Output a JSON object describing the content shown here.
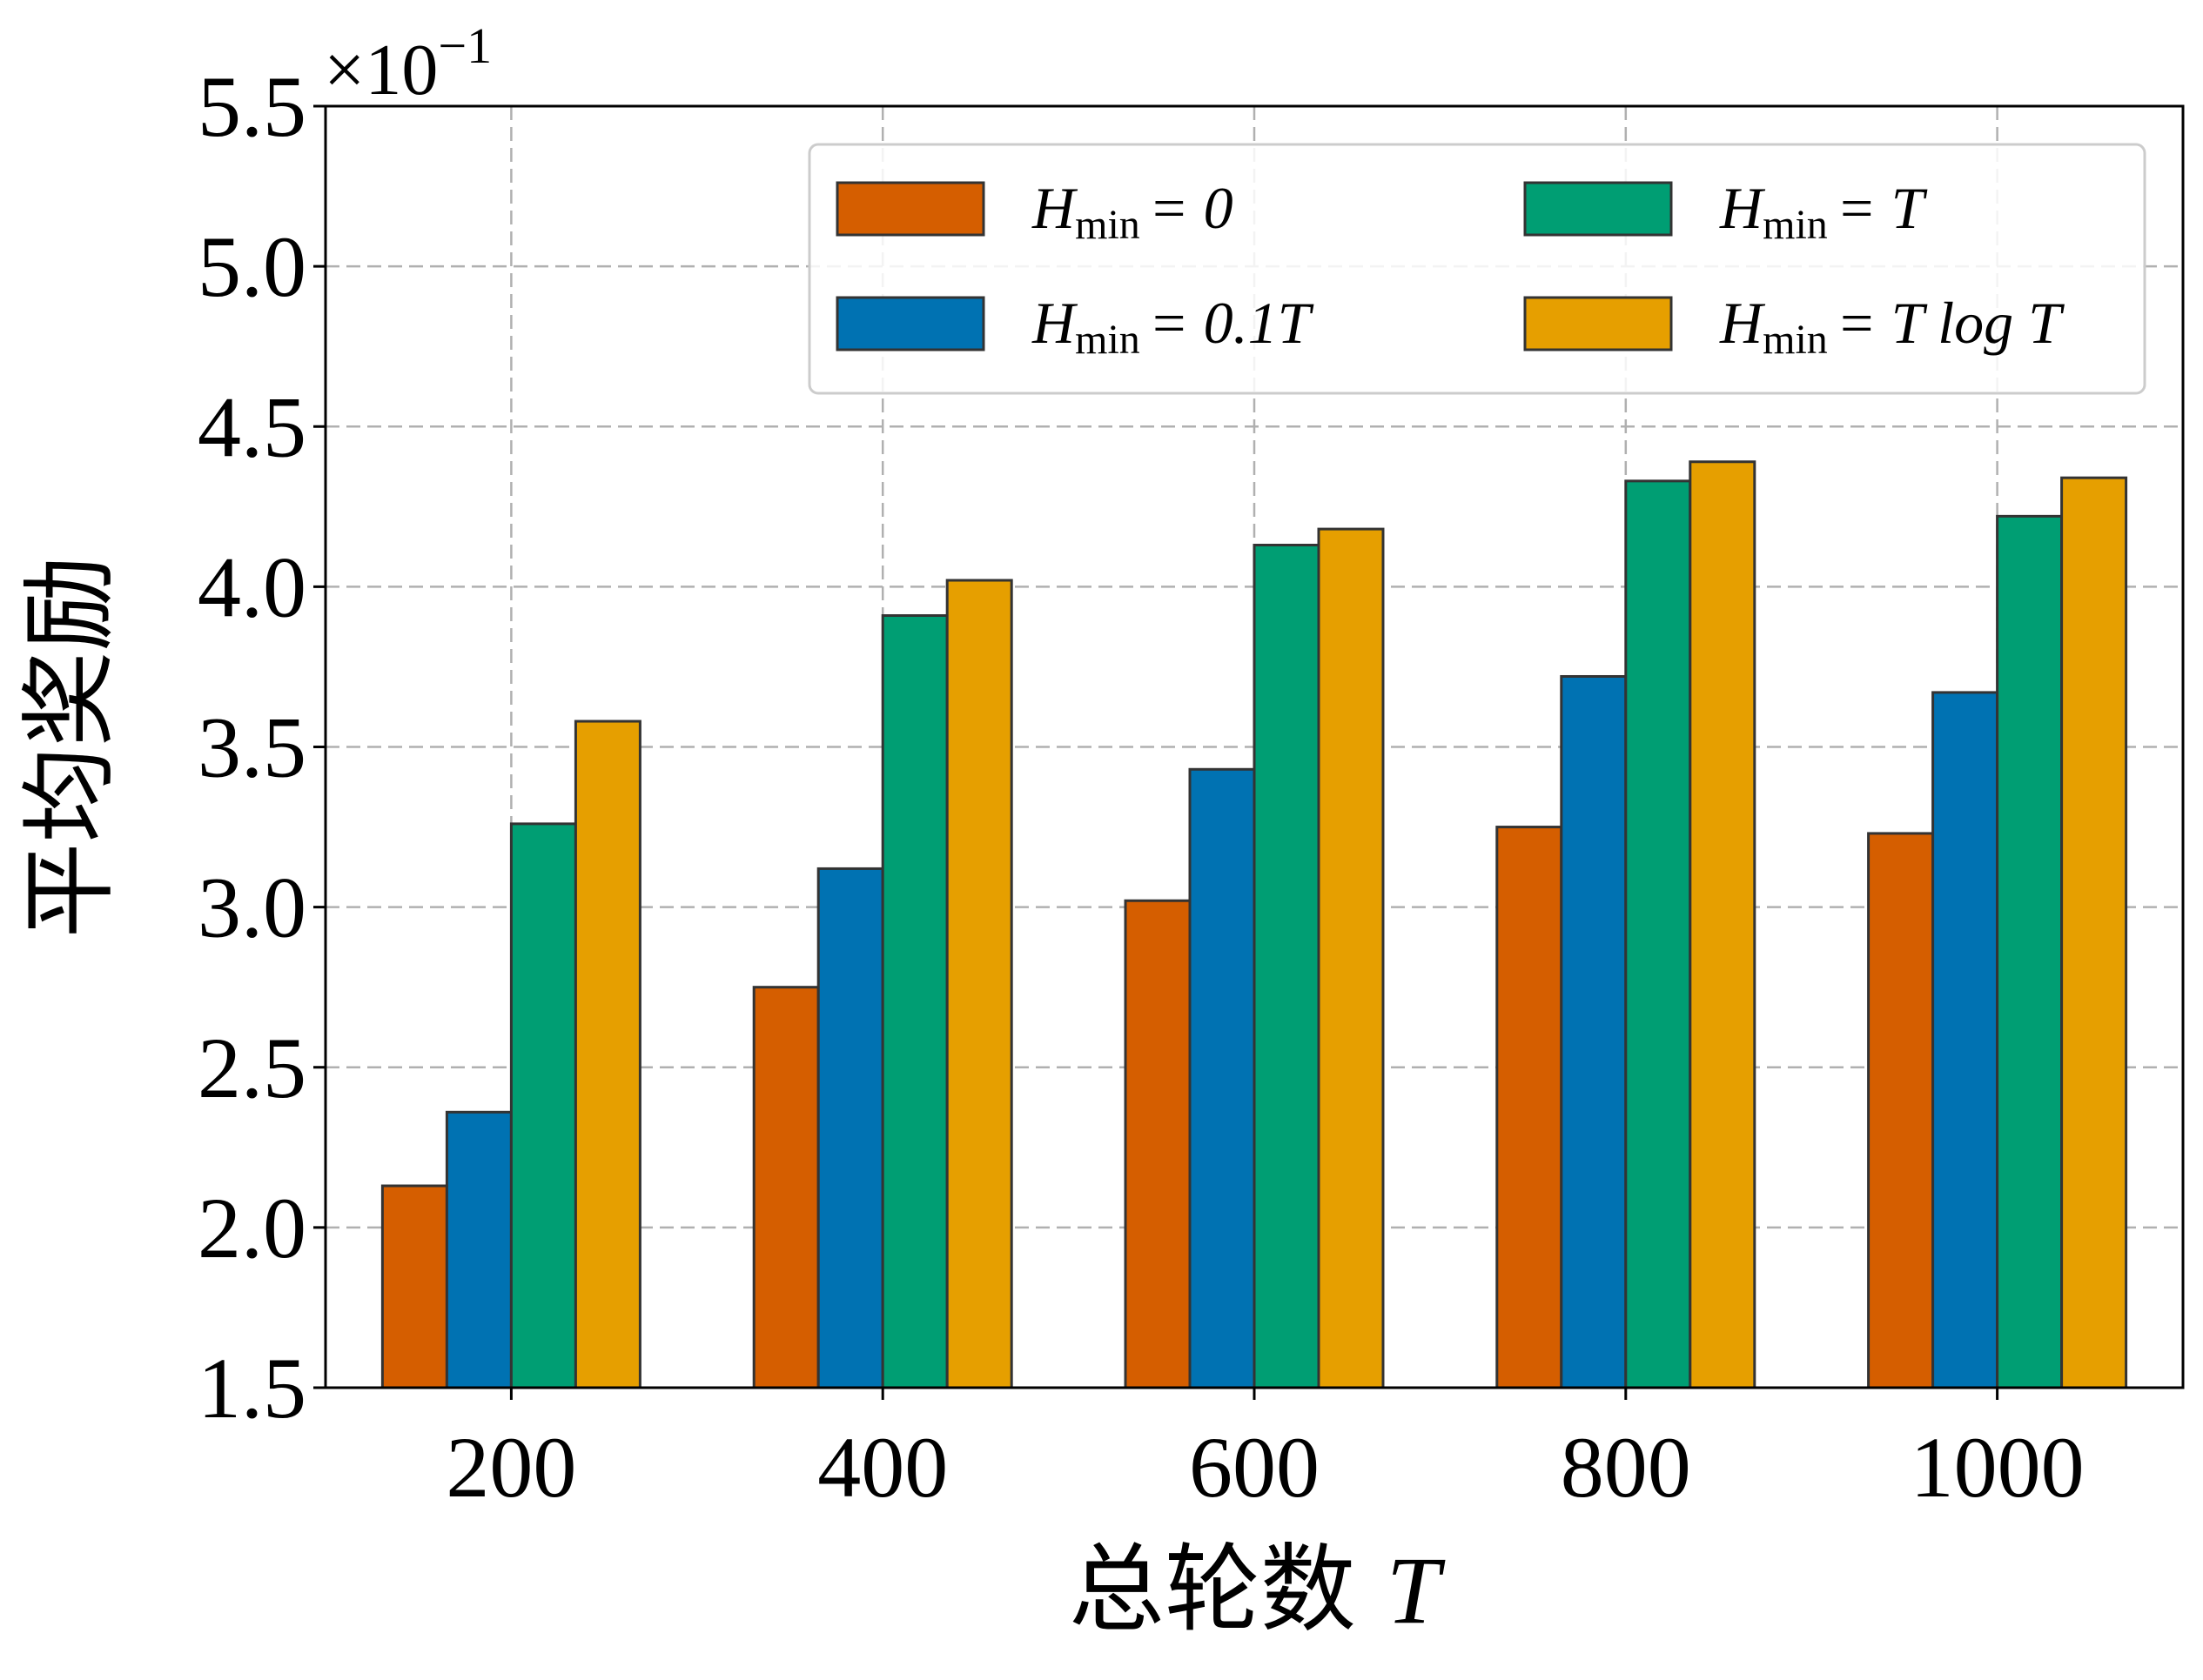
{
  "chart_data": {
    "type": "bar",
    "categories": [
      "200",
      "400",
      "600",
      "800",
      "1000"
    ],
    "series": [
      {
        "name": "H_min = 0",
        "color": "#D55E00",
        "values": [
          2.13,
          2.75,
          3.02,
          3.25,
          3.23
        ]
      },
      {
        "name": "H_min = 0.1T",
        "color": "#0072B2",
        "values": [
          2.36,
          3.12,
          3.43,
          3.72,
          3.67
        ]
      },
      {
        "name": "H_min = T",
        "color": "#009E73",
        "values": [
          3.26,
          3.91,
          4.13,
          4.33,
          4.22
        ]
      },
      {
        "name": "H_min = T log T",
        "color": "#E69F00",
        "values": [
          3.58,
          4.02,
          4.18,
          4.39,
          4.34
        ]
      }
    ],
    "legend_labels": [
      {
        "H": "H",
        "sub": "min",
        "rest": "= 0"
      },
      {
        "H": "H",
        "sub": "min",
        "rest": "= 0.1T"
      },
      {
        "H": "H",
        "sub": "min",
        "rest": "= T"
      },
      {
        "H": "H",
        "sub": "min",
        "rest": "= T log T"
      }
    ],
    "xlabel_prefix": "总轮数 ",
    "xlabel_var": "T",
    "ylabel": "平均奖励",
    "y_multiplier_base": "×10",
    "y_multiplier_exp": "−1",
    "ylim": [
      1.5,
      5.5
    ],
    "yticks": [
      "1.5",
      "2.0",
      "2.5",
      "3.0",
      "3.5",
      "4.0",
      "4.5",
      "5.0",
      "5.5"
    ],
    "grid": true,
    "legend_position": "top-right",
    "legend_columns": 2
  }
}
